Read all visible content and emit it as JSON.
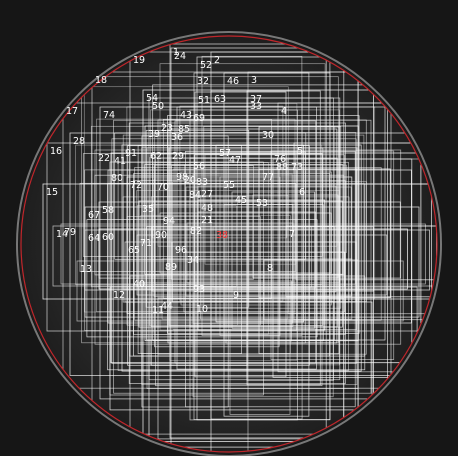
{
  "image": {
    "description_free": true,
    "colors": {
      "background": "#161616",
      "disc": "#2a2a2a",
      "boxes": "#ffffff",
      "ring": "#c8c8c8",
      "mask_circle": "#c0262b",
      "highlight_label": "#ff3b3b"
    },
    "labels": [
      {
        "id": "1",
        "text": "1"
      },
      {
        "id": "2",
        "text": "2"
      },
      {
        "id": "3",
        "text": "3"
      },
      {
        "id": "4",
        "text": "4"
      },
      {
        "id": "5",
        "text": "5"
      },
      {
        "id": "6",
        "text": "6"
      },
      {
        "id": "7",
        "text": "7"
      },
      {
        "id": "8",
        "text": "8"
      },
      {
        "id": "9",
        "text": "9"
      },
      {
        "id": "10",
        "text": "10"
      },
      {
        "id": "11",
        "text": "11"
      },
      {
        "id": "12",
        "text": "12"
      },
      {
        "id": "13",
        "text": "13"
      },
      {
        "id": "14",
        "text": "14"
      },
      {
        "id": "15",
        "text": "15"
      },
      {
        "id": "16",
        "text": "16"
      },
      {
        "id": "17",
        "text": "17"
      },
      {
        "id": "18",
        "text": "18"
      },
      {
        "id": "19",
        "text": "19"
      },
      {
        "id": "20",
        "text": "20"
      },
      {
        "id": "21",
        "text": "21"
      },
      {
        "id": "22",
        "text": "22"
      },
      {
        "id": "23",
        "text": "23"
      },
      {
        "id": "24",
        "text": "24"
      },
      {
        "id": "27",
        "text": "27"
      },
      {
        "id": "28",
        "text": "28"
      },
      {
        "id": "29",
        "text": "29"
      },
      {
        "id": "30",
        "text": "30"
      },
      {
        "id": "32",
        "text": "32"
      },
      {
        "id": "33",
        "text": "33"
      },
      {
        "id": "34",
        "text": "34"
      },
      {
        "id": "35",
        "text": "35"
      },
      {
        "id": "36",
        "text": "36"
      },
      {
        "id": "37",
        "text": "37"
      },
      {
        "id": "38",
        "text": "38"
      },
      {
        "id": "39",
        "text": "39"
      },
      {
        "id": "40",
        "text": "40"
      },
      {
        "id": "41",
        "text": "41"
      },
      {
        "id": "43",
        "text": "43"
      },
      {
        "id": "44",
        "text": "44"
      },
      {
        "id": "45",
        "text": "45"
      },
      {
        "id": "46",
        "text": "46"
      },
      {
        "id": "47",
        "text": "47"
      },
      {
        "id": "48",
        "text": "48"
      },
      {
        "id": "50",
        "text": "50"
      },
      {
        "id": "51",
        "text": "51"
      },
      {
        "id": "52",
        "text": "52"
      },
      {
        "id": "53",
        "text": "53"
      },
      {
        "id": "54",
        "text": "54"
      },
      {
        "id": "55",
        "text": "55"
      },
      {
        "id": "56",
        "text": "56"
      },
      {
        "id": "57",
        "text": "57"
      },
      {
        "id": "58",
        "text": "58"
      },
      {
        "id": "60",
        "text": "60"
      },
      {
        "id": "62",
        "text": "62"
      },
      {
        "id": "63",
        "text": "63"
      },
      {
        "id": "64",
        "text": "64"
      },
      {
        "id": "65",
        "text": "65"
      },
      {
        "id": "67",
        "text": "67"
      },
      {
        "id": "69",
        "text": "69"
      },
      {
        "id": "70",
        "text": "70"
      },
      {
        "id": "71",
        "text": "71"
      },
      {
        "id": "72",
        "text": "72"
      },
      {
        "id": "73",
        "text": "73"
      },
      {
        "id": "74",
        "text": "74"
      },
      {
        "id": "76",
        "text": "76"
      },
      {
        "id": "77",
        "text": "77"
      },
      {
        "id": "79",
        "text": "79"
      },
      {
        "id": "80",
        "text": "80"
      },
      {
        "id": "82",
        "text": "82"
      },
      {
        "id": "83",
        "text": "83"
      },
      {
        "id": "84",
        "text": "84"
      },
      {
        "id": "85",
        "text": "85"
      },
      {
        "id": "88",
        "text": "88"
      },
      {
        "id": "89",
        "text": "89"
      },
      {
        "id": "90",
        "text": "90"
      },
      {
        "id": "91",
        "text": "91"
      },
      {
        "id": "93",
        "text": "93"
      },
      {
        "id": "94",
        "text": "94"
      },
      {
        "id": "96",
        "text": "96"
      },
      {
        "id": "98",
        "text": "98"
      }
    ]
  }
}
